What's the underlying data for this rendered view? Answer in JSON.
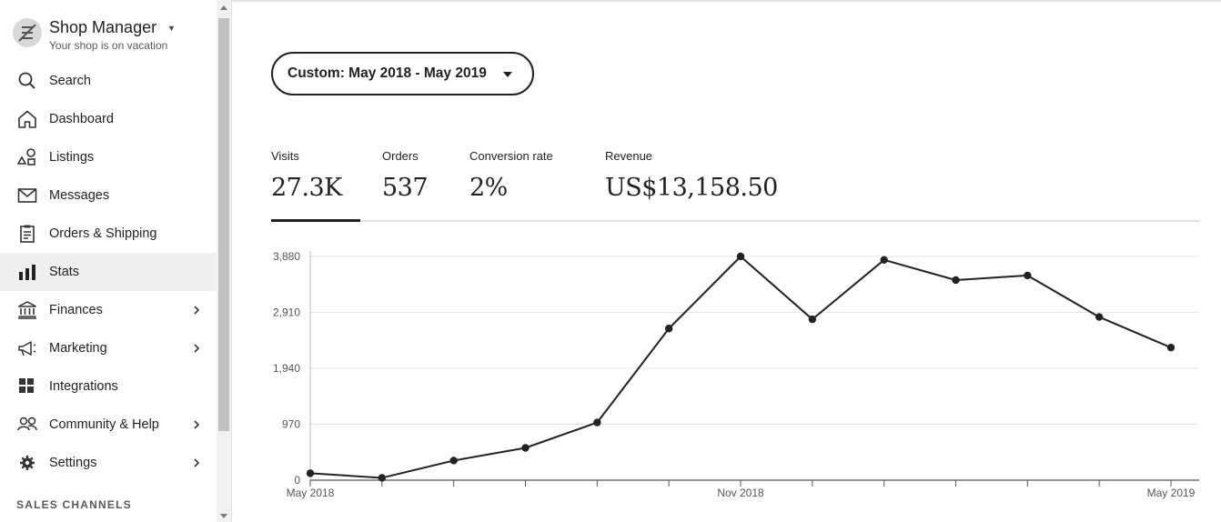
{
  "sidebar": {
    "shop_name": "Shop Manager",
    "shop_status": "Your shop is on vacation",
    "items": [
      {
        "label": "Search",
        "icon": "search-icon"
      },
      {
        "label": "Dashboard",
        "icon": "home-icon"
      },
      {
        "label": "Listings",
        "icon": "shapes-icon"
      },
      {
        "label": "Messages",
        "icon": "envelope-icon"
      },
      {
        "label": "Orders & Shipping",
        "icon": "clipboard-icon"
      },
      {
        "label": "Stats",
        "icon": "bar-chart-icon",
        "active": true
      },
      {
        "label": "Finances",
        "icon": "bank-icon",
        "has_submenu": true
      },
      {
        "label": "Marketing",
        "icon": "megaphone-icon",
        "has_submenu": true
      },
      {
        "label": "Integrations",
        "icon": "grid-icon"
      },
      {
        "label": "Community & Help",
        "icon": "people-icon",
        "has_submenu": true
      },
      {
        "label": "Settings",
        "icon": "gear-icon",
        "has_submenu": true
      }
    ],
    "section_label": "SALES CHANNELS"
  },
  "date_range": {
    "label": "Custom: May 2018 - May 2019"
  },
  "stats": [
    {
      "label": "Visits",
      "value": "27.3K",
      "active": true
    },
    {
      "label": "Orders",
      "value": "537"
    },
    {
      "label": "Conversion rate",
      "value": "2%"
    },
    {
      "label": "Revenue",
      "value": "US$13,158.50"
    }
  ],
  "chart_data": {
    "type": "line",
    "x_labels": [
      "May 2018",
      "Nov 2018",
      "May 2019"
    ],
    "y_ticks": [
      "0",
      "970",
      "1,940",
      "2,910",
      "3,880"
    ],
    "ylim": [
      0,
      3880
    ],
    "grid": true,
    "series": [
      {
        "values": [
          120,
          40,
          340,
          560,
          1000,
          2630,
          3880,
          2790,
          3820,
          3470,
          3550,
          2830,
          2300
        ]
      }
    ]
  },
  "colors": {
    "line": "#222222",
    "active_nav_bg": "#efefef",
    "grid": "#e6e6e6"
  }
}
